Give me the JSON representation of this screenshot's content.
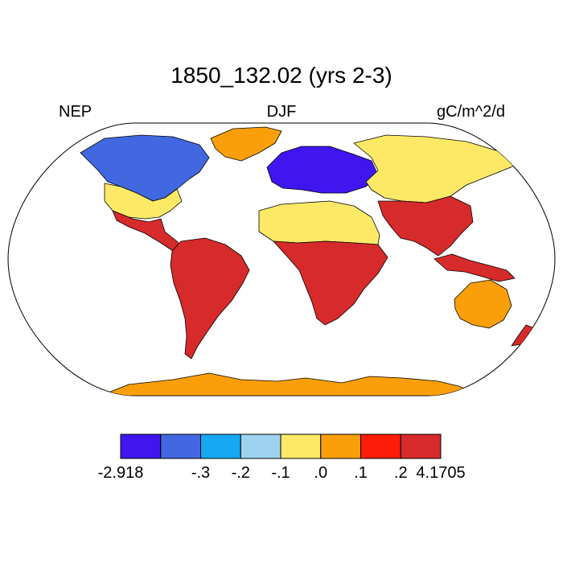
{
  "title": "1850_132.02 (yrs 2-3)",
  "left_label": "NEP",
  "center_label": "DJF",
  "right_label": "gC/m^2/d",
  "colorbar": {
    "colors": [
      "#3f16f0",
      "#4168e0",
      "#16a8f2",
      "#9dd3f0",
      "#fde965",
      "#fa9f0a",
      "#fd1c0a",
      "#d72a2a"
    ],
    "tick_labels": [
      "-2.918",
      "-.3",
      "-.2",
      "-.1",
      ".0",
      ".1",
      ".2",
      "4.1705"
    ]
  },
  "map": {
    "ocean_color": "#ffffff",
    "coast_color": "#000000",
    "regions": [
      {
        "name": "antarctica",
        "color": "#fa9f0a"
      },
      {
        "name": "greenland",
        "color": "#fa9f0a"
      },
      {
        "name": "canada-arctic",
        "color": "#4168e0"
      },
      {
        "name": "north-america-south",
        "color": "#fde965"
      },
      {
        "name": "central-america",
        "color": "#d72a2a"
      },
      {
        "name": "south-america",
        "color": "#d72a2a"
      },
      {
        "name": "sahara",
        "color": "#fde965"
      },
      {
        "name": "sub-saharan-africa",
        "color": "#d72a2a"
      },
      {
        "name": "europe-north",
        "color": "#3f16f0"
      },
      {
        "name": "siberia",
        "color": "#fde965"
      },
      {
        "name": "south-asia",
        "color": "#d72a2a"
      },
      {
        "name": "australia",
        "color": "#fa9f0a"
      }
    ]
  }
}
